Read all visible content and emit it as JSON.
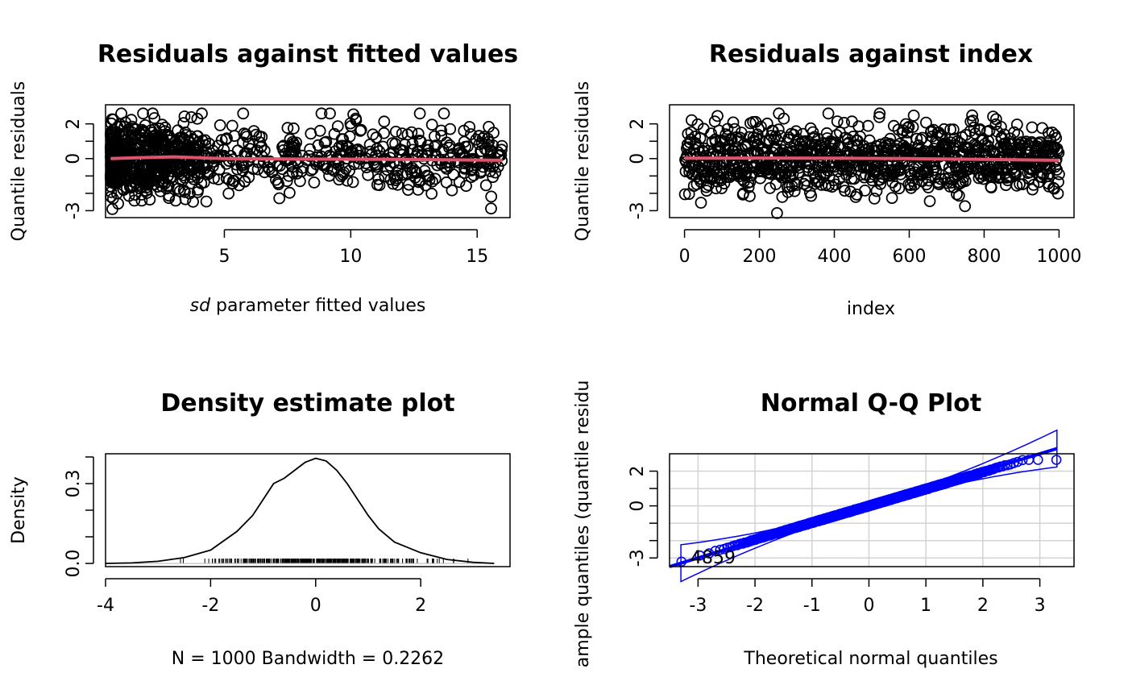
{
  "chart_data": [
    {
      "type": "scatter",
      "title": "Residuals against fitted values",
      "xlabel_italic": "sd",
      "xlabel_rest": " parameter fitted values",
      "ylabel": "Quantile residuals",
      "xlim": [
        0.3,
        16.3
      ],
      "ylim": [
        -3.4,
        3.1
      ],
      "xticks": [
        5,
        10,
        15
      ],
      "yticks": [
        -3,
        -2,
        -1,
        0,
        1,
        2
      ],
      "ytick_labels": [
        "-3",
        "",
        "",
        "0",
        "",
        "2"
      ],
      "n_points": 1000,
      "smooth": {
        "x": [
          0.5,
          1.5,
          3,
          5,
          8,
          12,
          16
        ],
        "y": [
          0.0,
          0.05,
          0.1,
          0.0,
          -0.03,
          -0.05,
          -0.1
        ]
      },
      "smooth_color": "#DF536B"
    },
    {
      "type": "scatter",
      "title": "Residuals against index",
      "xlabel": "index",
      "ylabel": "Quantile residuals",
      "xlim": [
        -40,
        1040
      ],
      "ylim": [
        -3.4,
        3.1
      ],
      "xticks": [
        0,
        200,
        400,
        600,
        800,
        1000
      ],
      "yticks": [
        -3,
        -2,
        -1,
        0,
        1,
        2
      ],
      "ytick_labels": [
        "-3",
        "",
        "",
        "0",
        "",
        "2"
      ],
      "n_points": 1000,
      "smooth": {
        "x": [
          0,
          200,
          400,
          600,
          800,
          1000
        ],
        "y": [
          0.02,
          0.03,
          0.02,
          0.0,
          -0.05,
          -0.1
        ]
      },
      "smooth_color": "#DF536B"
    },
    {
      "type": "line",
      "title": "Density estimate plot",
      "xlabel": "N = 1000   Bandwidth = 0.2262",
      "ylabel": "Density",
      "xlim": [
        -4.0,
        3.7
      ],
      "ylim": [
        -0.012,
        0.412
      ],
      "xticks": [
        -4,
        -2,
        0,
        2
      ],
      "yticks": [
        0.0,
        0.1,
        0.2,
        0.3,
        0.4
      ],
      "ytick_labels": [
        "0.0",
        "",
        "",
        "0.3",
        ""
      ],
      "x": [
        -4.0,
        -3.5,
        -3.0,
        -2.5,
        -2.0,
        -1.5,
        -1.2,
        -1.0,
        -0.8,
        -0.6,
        -0.4,
        -0.2,
        0.0,
        0.2,
        0.4,
        0.6,
        0.8,
        1.0,
        1.2,
        1.5,
        2.0,
        2.5,
        3.0,
        3.4
      ],
      "y": [
        0.0,
        0.002,
        0.008,
        0.022,
        0.05,
        0.12,
        0.18,
        0.24,
        0.3,
        0.32,
        0.35,
        0.38,
        0.395,
        0.385,
        0.35,
        0.3,
        0.24,
        0.18,
        0.13,
        0.08,
        0.04,
        0.015,
        0.004,
        0.0
      ],
      "rug": true
    },
    {
      "type": "scatter",
      "title": "Normal Q-Q Plot",
      "xlabel": "Theoretical normal quantiles",
      "ylabel": "ample quantiles (quantile residu",
      "xlim": [
        -3.5,
        3.6
      ],
      "ylim": [
        -3.5,
        3.0
      ],
      "xticks": [
        -3,
        -2,
        -1,
        0,
        1,
        2,
        3
      ],
      "yticks": [
        -3,
        -2,
        -1,
        0,
        1,
        2
      ],
      "ytick_labels": [
        "-3",
        "",
        "",
        "0",
        "",
        "2"
      ],
      "grid": true,
      "grid_color": "#D3D3D3",
      "band_color": "#0000FF",
      "point_label": "4859",
      "n_points": 1000
    }
  ]
}
